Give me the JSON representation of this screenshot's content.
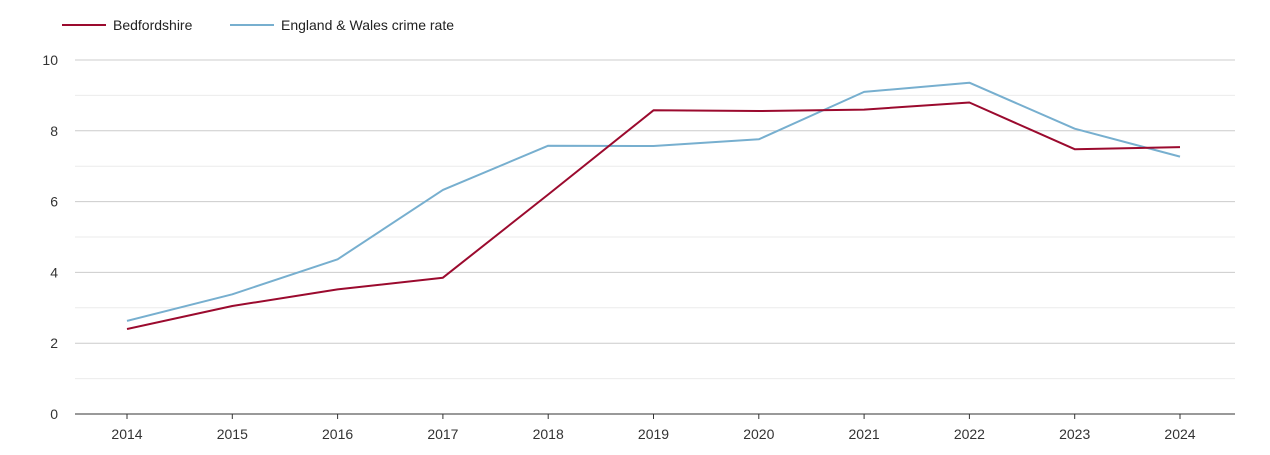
{
  "chart_data": {
    "type": "line",
    "title": "",
    "xlabel": "",
    "ylabel": "",
    "x": [
      "2014",
      "2015",
      "2016",
      "2017",
      "2018",
      "2019",
      "2020",
      "2021",
      "2022",
      "2023",
      "2024"
    ],
    "y_ticks": [
      "0",
      "2",
      "4",
      "6",
      "8",
      "10"
    ],
    "ylim": [
      0,
      10
    ],
    "grid": true,
    "legend_position": "top-left",
    "series": [
      {
        "name": "Bedfordshire",
        "color": "#9b0a2e",
        "values": [
          2.4,
          3.05,
          3.52,
          3.85,
          6.2,
          8.58,
          8.56,
          8.6,
          8.8,
          7.48,
          7.54
        ]
      },
      {
        "name": "England & Wales crime rate",
        "color": "#77afcf",
        "values": [
          2.63,
          3.38,
          4.37,
          6.33,
          7.58,
          7.57,
          7.76,
          9.1,
          9.36,
          8.06,
          7.27
        ]
      }
    ]
  }
}
